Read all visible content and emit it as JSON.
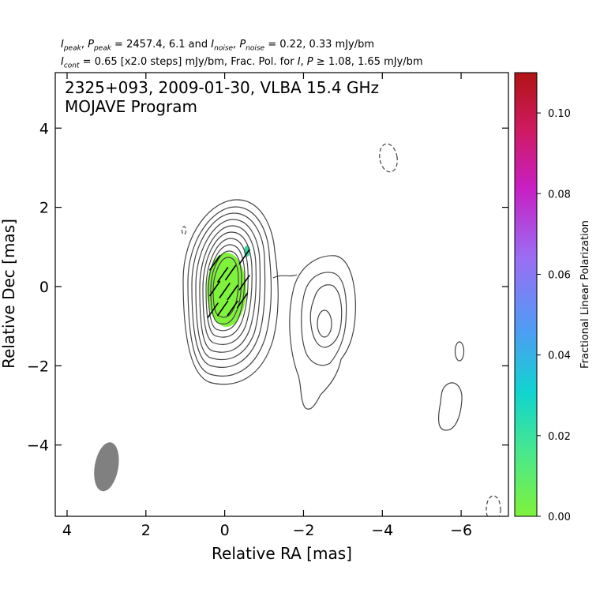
{
  "header": {
    "peak_values": "2457.4, 6.1",
    "noise_values": "0.22, 0.33 mJy/bm",
    "cont_values": "0.65 [x2.0 steps] mJy/bm, Frac. Pol. for",
    "frac_values": "1.08, 1.65 mJy/bm"
  },
  "chart_data": {
    "type": "contour",
    "title_line1": "2325+093, 2009-01-30, VLBA 15.4 GHz",
    "title_line2": "MOJAVE Program",
    "xlabel": "Relative RA [mas]",
    "ylabel": "Relative Dec [mas]",
    "xlim": [
      4.3,
      -7.2
    ],
    "ylim": [
      -5.8,
      5.4
    ],
    "xticks": [
      4,
      2,
      0,
      -2,
      -4,
      -6
    ],
    "xtick_labels": [
      "4",
      "2",
      "0",
      "−2",
      "−4",
      "−6"
    ],
    "yticks": [
      4,
      2,
      0,
      -2,
      -4
    ],
    "ytick_labels": [
      "4",
      "2",
      "0",
      "−2",
      "−4"
    ],
    "peak_intensity_mJy_bm": 2457.4,
    "peak_polarized_mJy_bm": 6.1,
    "noise_I_mJy_bm": 0.22,
    "noise_P_mJy_bm": 0.33,
    "lowest_contour_mJy_bm": 0.65,
    "contour_step_factor": 2.0,
    "frac_pol_threshold_I_mJy_bm": 1.08,
    "frac_pol_threshold_P_mJy_bm": 1.65,
    "beam": {
      "ra": 3.0,
      "dec": -4.55,
      "major_mas": 1.25,
      "minor_mas": 0.6,
      "pa_deg": 10
    },
    "polarized_region": {
      "ra": 0.1,
      "dec": -0.1,
      "semi_ra": 0.38,
      "semi_dec": 0.95,
      "fraction": 0.005
    },
    "evpa_vectors": [
      {
        "ra": 0.25,
        "dec": 0.6
      },
      {
        "ra": 0.05,
        "dec": 0.3
      },
      {
        "ra": -0.15,
        "dec": 0.35
      },
      {
        "ra": 0.25,
        "dec": -0.05
      },
      {
        "ra": 0.0,
        "dec": -0.1
      },
      {
        "ra": -0.2,
        "dec": -0.15
      },
      {
        "ra": 0.3,
        "dec": -0.6
      },
      {
        "ra": 0.05,
        "dec": -0.55
      },
      {
        "ra": -0.2,
        "dec": -0.55
      },
      {
        "ra": -0.5,
        "dec": 0.75
      },
      {
        "ra": -0.5,
        "dec": 0.1
      },
      {
        "ra": -0.45,
        "dec": -0.35
      }
    ],
    "evpa_angle_deg": 55,
    "colorbar": {
      "label": "Fractional Linear Polarization",
      "range": [
        0.0,
        0.11
      ],
      "ticks": [
        0.0,
        0.02,
        0.04,
        0.06,
        0.08,
        0.1
      ],
      "tick_labels": [
        "0.00",
        "0.02",
        "0.04",
        "0.06",
        "0.08",
        "0.10"
      ],
      "colors": [
        "#7ff23b",
        "#4ae88a",
        "#10d4d0",
        "#4f9cf4",
        "#9a6ef4",
        "#c81fc4",
        "#cf1a62",
        "#b01414"
      ]
    }
  }
}
